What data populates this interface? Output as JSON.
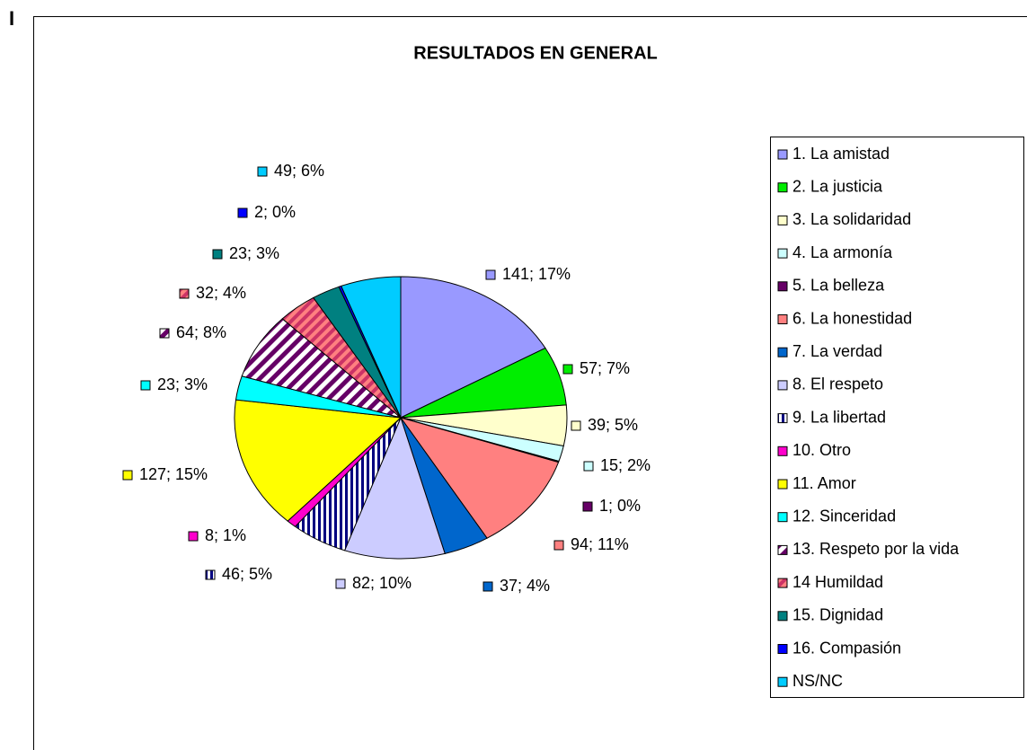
{
  "corner_mark": "I",
  "chart_data": {
    "type": "pie",
    "title": "RESULTADOS EN GENERAL",
    "categories": [
      "1. La amistad",
      "2. La justicia",
      "3. La solidaridad",
      "4. La armonía",
      "5. La belleza",
      "6. La honestidad",
      "7. La verdad",
      "8. El respeto",
      "9. La libertad",
      "10. Otro",
      "11. Amor",
      "12. Sinceridad",
      "13. Respeto por la vida",
      "14 Humildad",
      "15. Dignidad",
      "16. Compasión",
      "NS/NC"
    ],
    "values": [
      141,
      57,
      39,
      15,
      1,
      94,
      37,
      82,
      46,
      8,
      127,
      23,
      64,
      32,
      23,
      2,
      49
    ],
    "value_labels": [
      "141; 17%",
      "57; 7%",
      "39; 5%",
      "15; 2%",
      "1; 0%",
      "94; 11%",
      "37; 4%",
      "82; 10%",
      "46; 5%",
      "8; 1%",
      "127; 15%",
      "23; 3%",
      "64; 8%",
      "32; 4%",
      "23; 3%",
      "2; 0%",
      "49; 6%"
    ],
    "colors": [
      "#9999ff",
      "#00ee00",
      "#ffffcc",
      "#ccffff",
      "#660066",
      "#ff8080",
      "#0066cc",
      "#ccccff",
      "#000080",
      "#ff00cc",
      "#ffff00",
      "#00ffff",
      "#660066",
      "#cc3366",
      "#008080",
      "#0000ff",
      "#00ccff"
    ],
    "patterns": [
      null,
      null,
      null,
      null,
      null,
      null,
      null,
      null,
      "vertical",
      null,
      null,
      null,
      "diagonal",
      "diagonal",
      null,
      null,
      null
    ],
    "legend": "right"
  }
}
